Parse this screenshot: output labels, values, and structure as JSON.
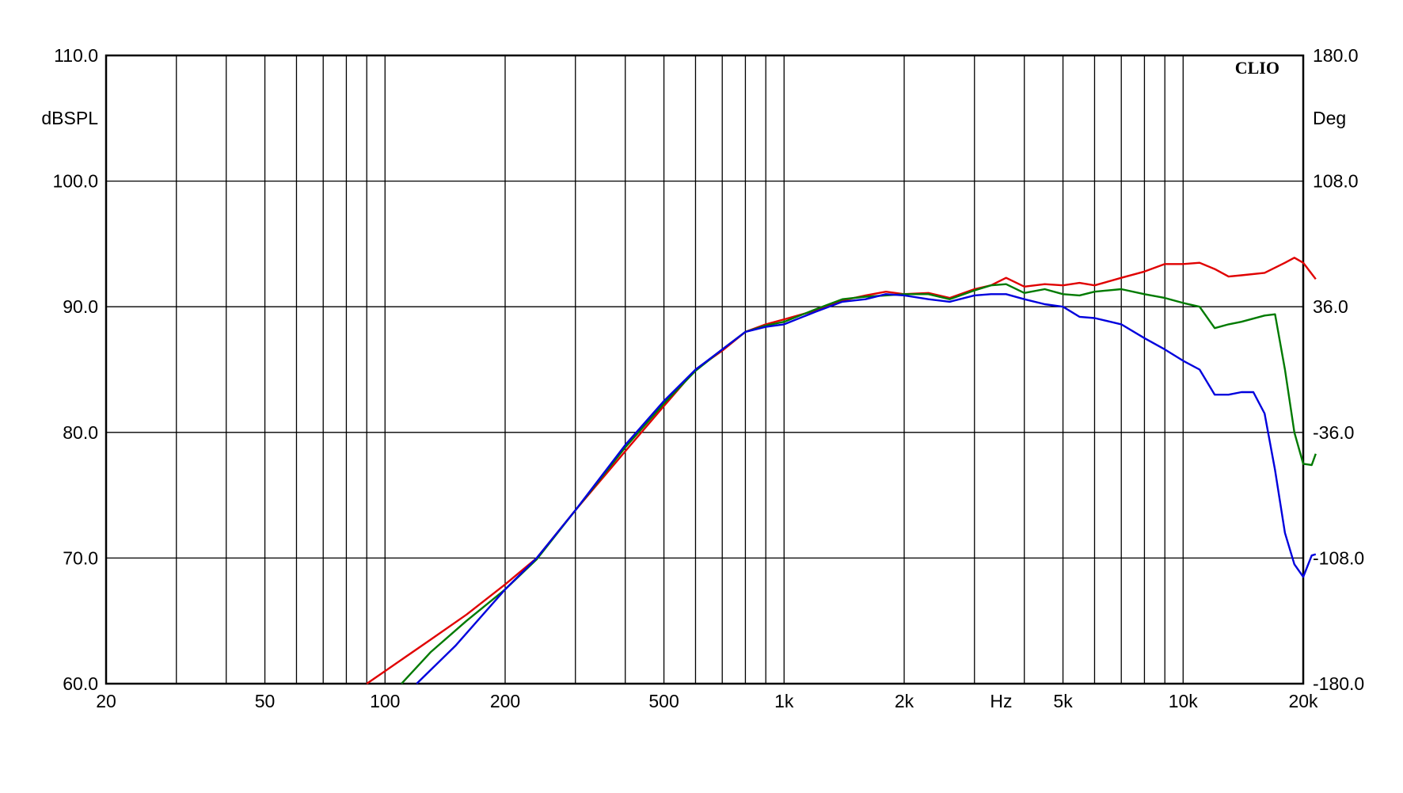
{
  "chart_data": {
    "type": "line",
    "brand": "CLIO",
    "x_scale": "log",
    "xlim": [
      20,
      20000
    ],
    "xlabel": "Hz",
    "ylabel_left": "dBSPL",
    "ylabel_right": "Deg",
    "ylim_left": [
      60,
      110
    ],
    "ylim_right": [
      -180,
      180
    ],
    "grid": true,
    "x_ticks": [
      {
        "value": 20,
        "label": "20"
      },
      {
        "value": 50,
        "label": "50"
      },
      {
        "value": 100,
        "label": "100"
      },
      {
        "value": 200,
        "label": "200"
      },
      {
        "value": 500,
        "label": "500"
      },
      {
        "value": 1000,
        "label": "1k"
      },
      {
        "value": 2000,
        "label": "2k"
      },
      {
        "value": 5000,
        "label": "5k"
      },
      {
        "value": 10000,
        "label": "10k"
      },
      {
        "value": 20000,
        "label": "20k"
      }
    ],
    "y_ticks_left": [
      {
        "value": 110,
        "label": "110.0"
      },
      {
        "value": 100,
        "label": "100.0"
      },
      {
        "value": 90,
        "label": "90.0"
      },
      {
        "value": 80,
        "label": "80.0"
      },
      {
        "value": 70,
        "label": "70.0"
      },
      {
        "value": 60,
        "label": "60.0"
      }
    ],
    "y_ticks_right": [
      {
        "value": 180,
        "label": "180.0"
      },
      {
        "value": 108,
        "label": "108.0"
      },
      {
        "value": 36,
        "label": "36.0"
      },
      {
        "value": -36,
        "label": "-36.0"
      },
      {
        "value": -108,
        "label": "-108.0"
      },
      {
        "value": -180,
        "label": "-180.0"
      }
    ],
    "series": [
      {
        "color": "#e00000",
        "x": [
          90,
          100,
          130,
          160,
          200,
          240,
          300,
          400,
          500,
          600,
          700,
          800,
          900,
          1000,
          1200,
          1400,
          1600,
          1800,
          2000,
          2300,
          2600,
          3000,
          3300,
          3600,
          4000,
          4500,
          5000,
          5500,
          6000,
          7000,
          8000,
          9000,
          10000,
          11000,
          12000,
          13000,
          14000,
          16000,
          18000,
          19000,
          20000,
          21500
        ],
        "y": [
          60.0,
          61.0,
          63.5,
          65.5,
          67.9,
          70.0,
          73.8,
          78.5,
          82.1,
          85.0,
          86.5,
          88.0,
          88.6,
          89.0,
          89.7,
          90.5,
          90.9,
          91.2,
          91.0,
          91.1,
          90.7,
          91.4,
          91.7,
          92.3,
          91.6,
          91.8,
          91.7,
          91.9,
          91.7,
          92.3,
          92.8,
          93.4,
          93.4,
          93.5,
          93.0,
          92.4,
          92.5,
          92.7,
          93.5,
          93.9,
          93.5,
          92.2
        ]
      },
      {
        "color": "#007a00",
        "x": [
          110,
          130,
          160,
          200,
          240,
          300,
          400,
          500,
          600,
          700,
          800,
          900,
          1000,
          1200,
          1400,
          1600,
          1800,
          2000,
          2300,
          2600,
          3000,
          3300,
          3600,
          4000,
          4500,
          5000,
          5500,
          6000,
          7000,
          8000,
          9000,
          10000,
          11000,
          12000,
          13000,
          14000,
          16000,
          17000,
          18000,
          19000,
          20000,
          21000,
          21500
        ],
        "y": [
          60.0,
          62.5,
          65.0,
          67.5,
          69.9,
          73.8,
          78.8,
          82.3,
          84.9,
          86.6,
          88.0,
          88.5,
          88.8,
          89.8,
          90.6,
          90.8,
          90.9,
          91.0,
          91.0,
          90.6,
          91.3,
          91.7,
          91.8,
          91.1,
          91.4,
          91.0,
          90.9,
          91.2,
          91.4,
          91.0,
          90.7,
          90.3,
          90.0,
          88.3,
          88.6,
          88.8,
          89.3,
          89.4,
          85.0,
          80.0,
          77.5,
          77.4,
          78.3
        ]
      },
      {
        "color": "#0000dd",
        "x": [
          120,
          150,
          200,
          240,
          300,
          400,
          500,
          600,
          700,
          800,
          900,
          1000,
          1200,
          1400,
          1600,
          1800,
          2000,
          2300,
          2600,
          3000,
          3300,
          3600,
          4000,
          4500,
          5000,
          5500,
          6000,
          7000,
          8000,
          9000,
          10000,
          11000,
          12000,
          13000,
          14000,
          15000,
          16000,
          17000,
          18000,
          19000,
          20000,
          21000,
          21500
        ],
        "y": [
          60.0,
          63.0,
          67.5,
          70.0,
          73.8,
          79.0,
          82.5,
          85.0,
          86.6,
          88.0,
          88.4,
          88.6,
          89.6,
          90.4,
          90.6,
          91.0,
          90.9,
          90.6,
          90.4,
          90.9,
          91.0,
          91.0,
          90.6,
          90.2,
          90.0,
          89.2,
          89.1,
          88.6,
          87.5,
          86.6,
          85.7,
          85.0,
          83.0,
          83.0,
          83.2,
          83.2,
          81.5,
          77.0,
          72.0,
          69.5,
          68.5,
          70.2,
          70.3
        ]
      }
    ]
  }
}
